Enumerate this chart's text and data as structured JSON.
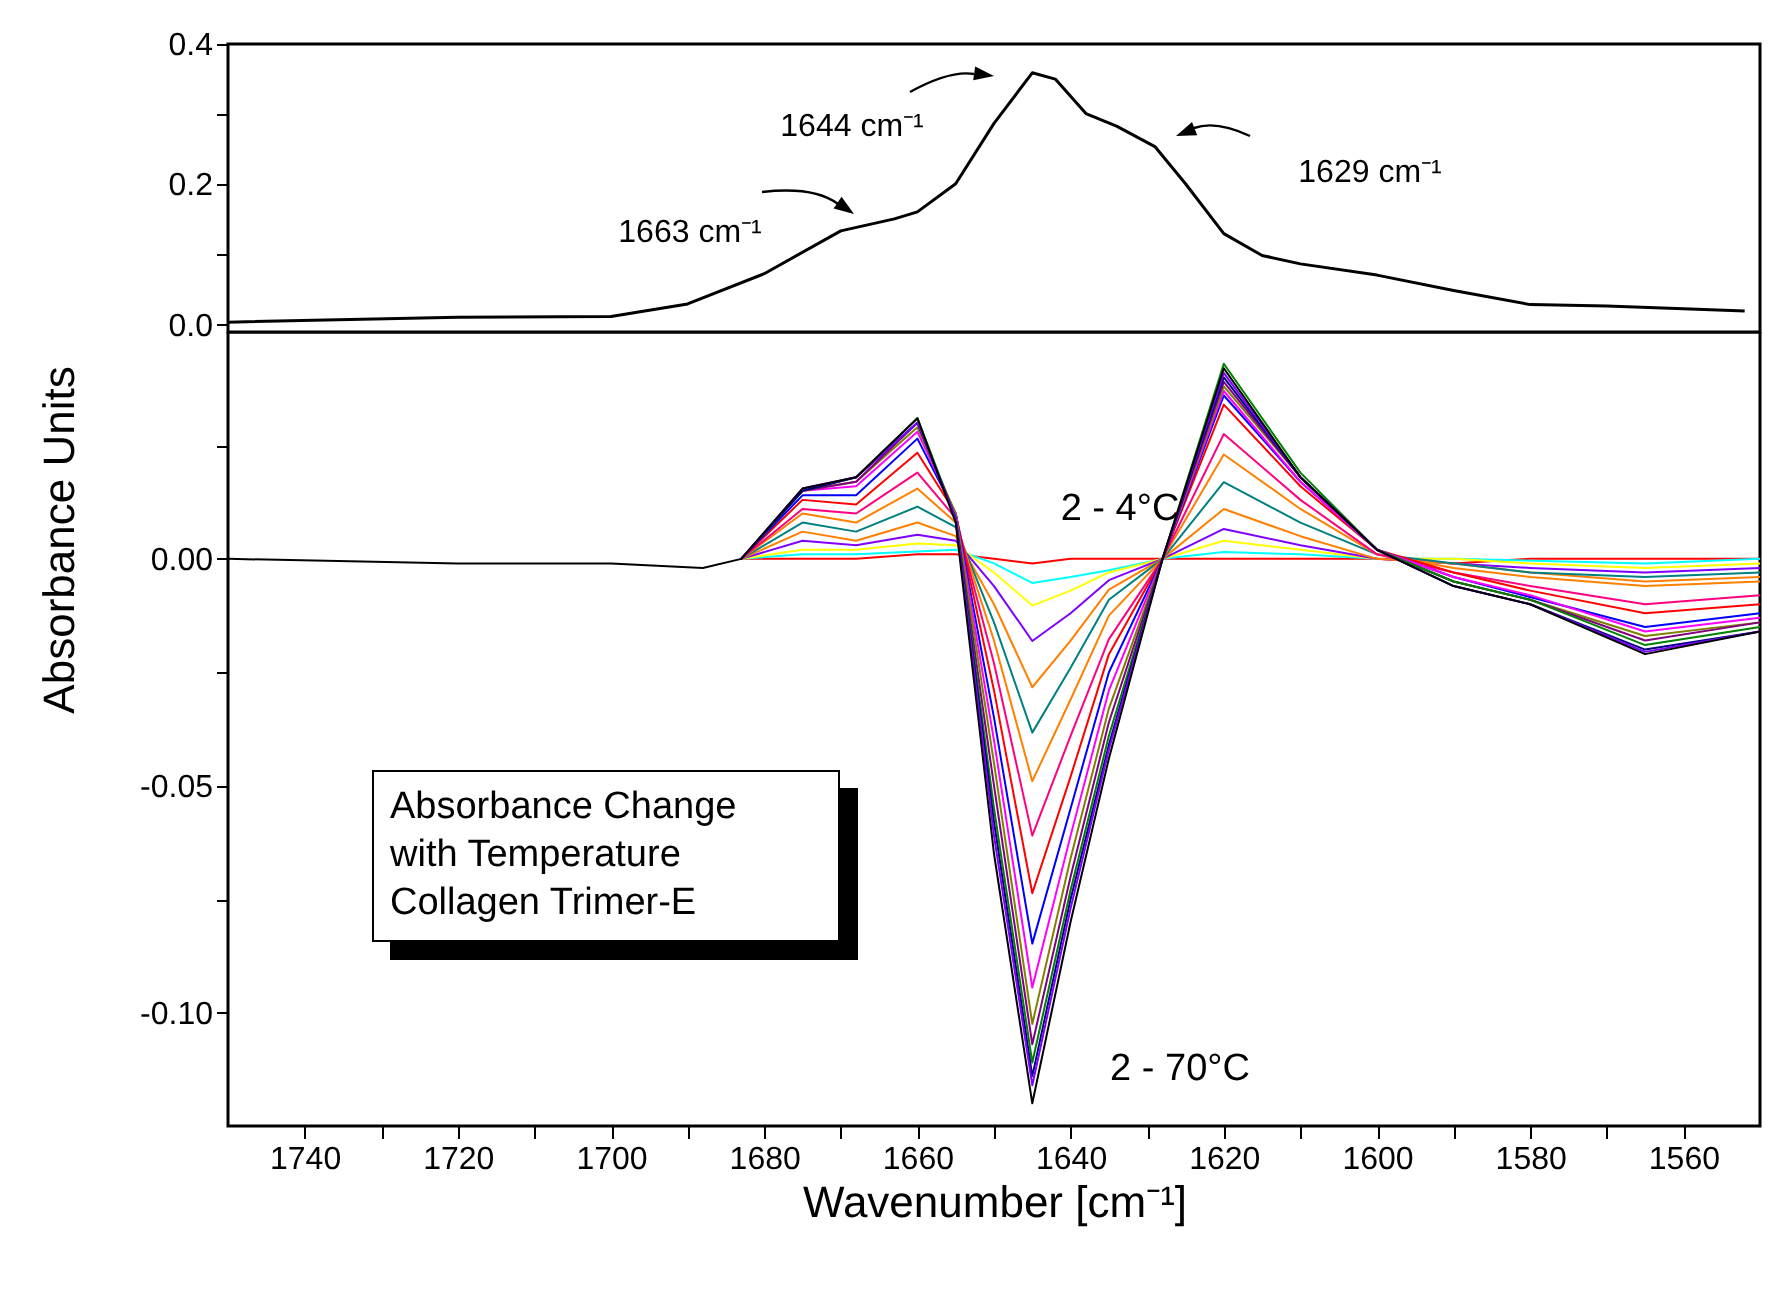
{
  "chart_data": [
    {
      "type": "line",
      "x": [
        1750,
        1720,
        1700,
        1690,
        1680,
        1670,
        1663,
        1660,
        1655,
        1650,
        1645,
        1642,
        1638,
        1634,
        1629,
        1625,
        1620,
        1615,
        1610,
        1600,
        1590,
        1580,
        1570,
        1560,
        1552
      ],
      "series": [
        {
          "color": "#000000",
          "values": [
            0.004,
            0.011,
            0.012,
            0.03,
            0.073,
            0.134,
            0.151,
            0.161,
            0.201,
            0.287,
            0.359,
            0.35,
            0.301,
            0.283,
            0.254,
            0.201,
            0.13,
            0.099,
            0.087,
            0.071,
            0.049,
            0.029,
            0.027,
            0.023,
            0.02
          ]
        }
      ],
      "xlim": [
        1750,
        1550
      ],
      "ylim": [
        -0.01,
        0.4
      ],
      "yticks": [
        {
          "value": 0,
          "label": "0.0"
        },
        {
          "value": 0.1,
          "label": null
        },
        {
          "value": 0.2,
          "label": "0.2"
        },
        {
          "value": 0.3,
          "label": null
        },
        {
          "value": 0.4,
          "label": "0.4"
        }
      ],
      "tick_labels": "y",
      "annotations": [
        "1663 cm⁻¹",
        "1644 cm⁻¹",
        "1629 cm⁻¹"
      ]
    },
    {
      "type": "line",
      "x": [
        1750,
        1720,
        1700,
        1688,
        1683,
        1675,
        1668,
        1660,
        1655,
        1650,
        1645,
        1640,
        1635,
        1628,
        1620,
        1610,
        1600,
        1590,
        1580,
        1565,
        1550
      ],
      "series": [
        {
          "color": "#ff0000",
          "values": [
            null,
            null,
            null,
            null,
            0,
            0,
            0,
            0.001,
            0.001,
            0,
            -0.001,
            0,
            0,
            0,
            0,
            0,
            0,
            -0.001,
            0,
            null,
            0
          ]
        },
        {
          "color": "#00ffff",
          "values": [
            null,
            null,
            null,
            null,
            0,
            0.001,
            0.001,
            0.0016,
            0.002,
            -0.001,
            -0.0053,
            -0.004,
            -0.0025,
            0,
            0.0015,
            0.001,
            0,
            0,
            null,
            -0.001,
            0
          ]
        },
        {
          "color": "#ffff00",
          "values": [
            null,
            null,
            null,
            null,
            0,
            0.002,
            0.002,
            0.0034,
            0.003,
            -0.003,
            -0.0103,
            -0.007,
            -0.003,
            0,
            0.004,
            0.002,
            0,
            0,
            -0.001,
            -0.002,
            -0.001
          ]
        },
        {
          "color": "#8000ff",
          "values": [
            null,
            null,
            null,
            null,
            0,
            0.004,
            0.003,
            0.0053,
            0.004,
            -0.006,
            -0.0181,
            -0.012,
            -0.0047,
            0,
            0.0066,
            0.003,
            0,
            -0.001,
            -0.002,
            -0.003,
            -0.002
          ]
        },
        {
          "color": "#ff8000",
          "values": [
            null,
            null,
            null,
            null,
            0,
            0.006,
            0.004,
            0.008,
            0.005,
            -0.01,
            -0.0283,
            -0.018,
            -0.0068,
            0,
            0.011,
            0.005,
            0,
            -0.001,
            -0.003,
            -0.005,
            -0.004
          ]
        },
        {
          "color": "#008080",
          "values": [
            null,
            null,
            null,
            null,
            0,
            0.008,
            0.006,
            0.0115,
            0.007,
            -0.014,
            -0.0383,
            -0.024,
            -0.009,
            0,
            0.0169,
            0.008,
            0.001,
            null,
            -0.003,
            -0.004,
            -0.003
          ]
        },
        {
          "color": "#ff8000",
          "values": [
            null,
            null,
            null,
            null,
            0,
            0.01,
            0.008,
            0.0155,
            0.008,
            -0.018,
            -0.049,
            -0.031,
            -0.0125,
            0,
            0.023,
            0.011,
            0.001,
            -0.002,
            -0.004,
            -0.006,
            -0.005
          ]
        },
        {
          "color": "#ff0080",
          "values": [
            null,
            null,
            null,
            null,
            0,
            0.011,
            0.01,
            0.019,
            0.009,
            -0.023,
            -0.061,
            -0.039,
            -0.0177,
            0,
            0.0275,
            0.013,
            0.001,
            -0.003,
            -0.006,
            -0.01,
            -0.008
          ]
        },
        {
          "color": "#ff0000",
          "values": [
            null,
            null,
            null,
            null,
            0,
            0.013,
            0.012,
            0.0234,
            0.01,
            -0.029,
            -0.0737,
            -0.048,
            -0.021,
            0,
            0.034,
            0.016,
            0.002,
            -0.003,
            -0.007,
            -0.012,
            -0.01
          ]
        },
        {
          "color": "#0000ff",
          "values": [
            null,
            null,
            null,
            null,
            0,
            0.014,
            0.014,
            0.0265,
            0.01,
            -0.035,
            -0.0848,
            -0.055,
            -0.025,
            0,
            0.036,
            0.017,
            0.002,
            -0.004,
            null,
            -0.015,
            -0.012
          ]
        },
        {
          "color": "#ff00ff",
          "values": [
            null,
            null,
            null,
            null,
            0,
            0.015,
            0.016,
            0.028,
            0.01,
            -0.04,
            -0.0945,
            -0.061,
            -0.029,
            0,
            0.037,
            0.017,
            0.002,
            -0.004,
            -0.008,
            -0.016,
            -0.013
          ]
        },
        {
          "color": "#808000",
          "values": [
            null,
            null,
            null,
            null,
            0,
            0.015,
            0.017,
            0.029,
            0.01,
            -0.045,
            -0.1025,
            -0.066,
            -0.033,
            0,
            0.038,
            0.018,
            0.002,
            -0.005,
            -0.009,
            -0.017,
            -0.014
          ]
        },
        {
          "color": "#800080",
          "values": [
            null,
            null,
            null,
            null,
            0,
            0.015,
            0.017,
            0.03,
            0.009,
            -0.05,
            -0.107,
            -0.07,
            -0.036,
            0,
            0.039,
            0.018,
            0.002,
            -0.005,
            -0.009,
            -0.018,
            -0.014
          ]
        },
        {
          "color": "#008000",
          "values": [
            null,
            null,
            null,
            null,
            0,
            0.015,
            0.018,
            0.031,
            0.009,
            -0.055,
            -0.111,
            -0.073,
            -0.039,
            0,
            0.043,
            0.019,
            0.002,
            -0.005,
            -0.009,
            -0.019,
            -0.015
          ]
        },
        {
          "color": "#000080",
          "values": [
            null,
            null,
            null,
            null,
            0,
            0.015,
            0.018,
            0.03,
            0.009,
            -0.058,
            -0.114,
            -0.075,
            -0.041,
            0,
            0.04,
            0.018,
            0.002,
            -0.006,
            -0.01,
            -0.02,
            -0.016
          ]
        },
        {
          "color": "#8000ff",
          "values": [
            null,
            null,
            null,
            null,
            0,
            0.0155,
            0.018,
            0.03,
            0.009,
            -0.061,
            -0.116,
            -0.077,
            -0.042,
            0,
            0.041,
            0.018,
            0.002,
            -0.006,
            -0.01,
            -0.0205,
            -0.016
          ]
        },
        {
          "color": "#000000",
          "values": [
            0,
            -0.001,
            -0.001,
            -0.002,
            0,
            0.0155,
            0.018,
            0.031,
            0.008,
            -0.065,
            -0.12,
            -0.08,
            -0.044,
            0,
            0.042,
            0.018,
            0.002,
            -0.006,
            -0.01,
            -0.021,
            -0.016
          ]
        }
      ],
      "xlim": [
        1750,
        1550
      ],
      "ylim": [
        -0.125,
        0.05
      ],
      "xticks": [
        1740,
        {
          "value": 1730,
          "label": null
        },
        1720,
        {
          "value": 1710,
          "label": null
        },
        1700,
        {
          "value": 1690,
          "label": null
        },
        1680,
        {
          "value": 1670,
          "label": null
        },
        1660,
        {
          "value": 1650,
          "label": null
        },
        1640,
        {
          "value": 1630,
          "label": null
        },
        1620,
        {
          "value": 1610,
          "label": null
        },
        1600,
        {
          "value": 1590,
          "label": null
        },
        1580,
        {
          "value": 1570,
          "label": null
        },
        1560
      ],
      "yticks": [
        {
          "value": 0.025,
          "label": null
        },
        {
          "value": 0,
          "label": "0.00"
        },
        {
          "value": -0.025,
          "label": null
        },
        {
          "value": -0.05,
          "label": "-0.05"
        },
        {
          "value": -0.075,
          "label": null
        },
        {
          "value": -0.1,
          "label": "-0.10"
        }
      ],
      "xlabel": "Wavenumber [cm⁻¹]",
      "ylabel": "Absorbance Units",
      "annotations": [
        "2 - 4°C",
        "2 - 70°C",
        "Absorbance Change\nwith Temperature\nCollagen Trimer-E"
      ]
    }
  ]
}
